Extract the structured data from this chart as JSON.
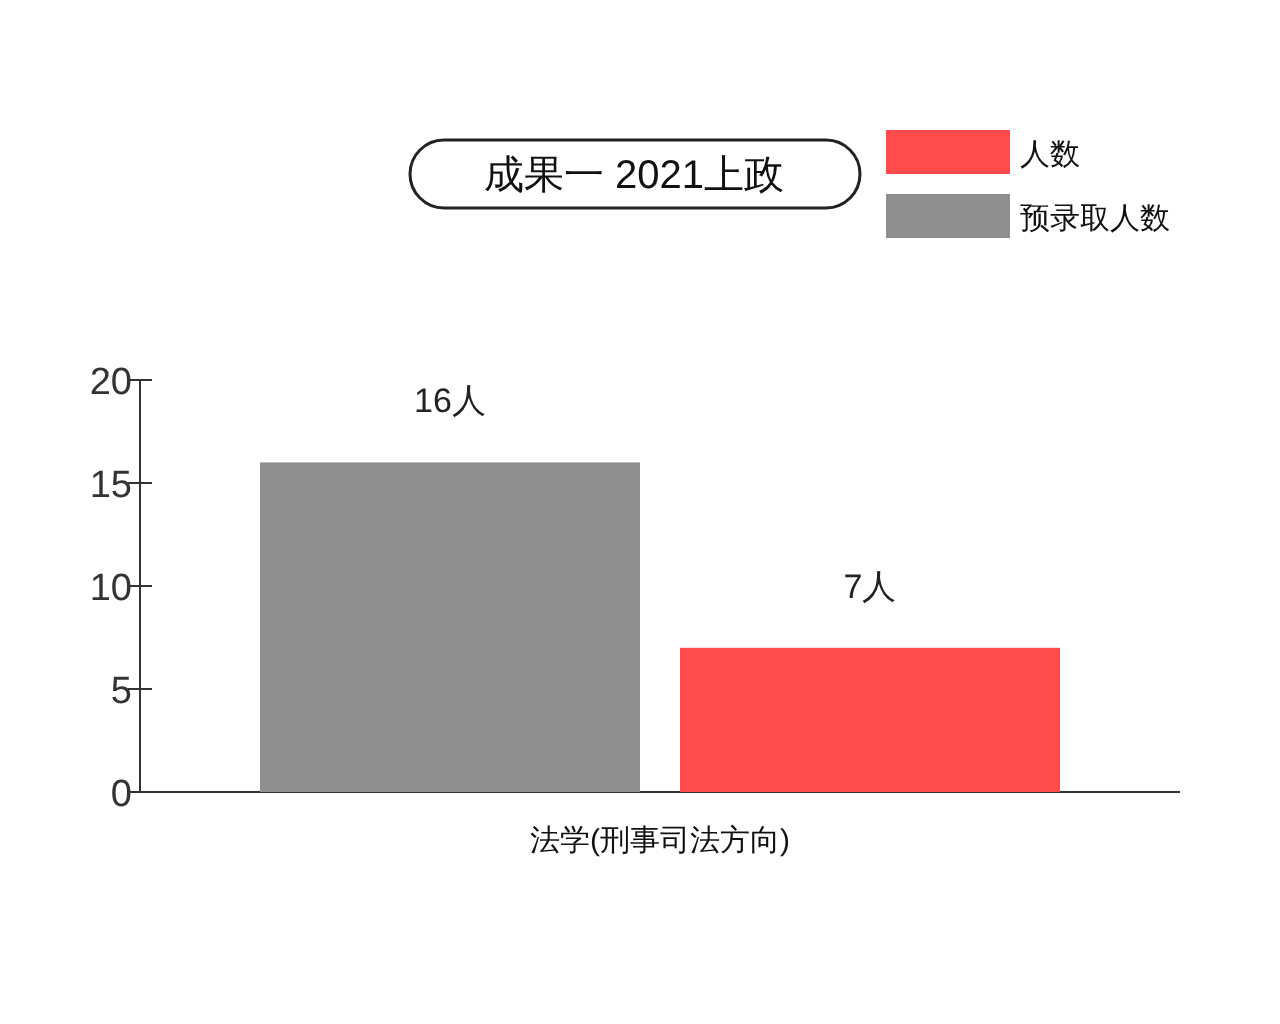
{
  "chart_data": {
    "type": "bar",
    "title": "成果一 2021上政",
    "categories": [
      "法学(刑事司法方向)"
    ],
    "series": [
      {
        "name": "预录取人数",
        "color": "#8f8f8f",
        "values": [
          16
        ],
        "value_labels": [
          "16人"
        ]
      },
      {
        "name": "人数",
        "color": "#ff4b4b",
        "values": [
          7
        ],
        "value_labels": [
          "7人"
        ]
      }
    ],
    "ylim": [
      0,
      20
    ],
    "yticks": [
      0,
      5,
      10,
      15,
      20
    ],
    "grid": false,
    "legend": "top right"
  }
}
